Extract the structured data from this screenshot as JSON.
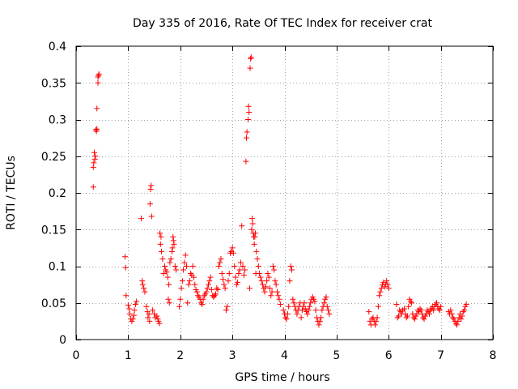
{
  "chart_data": {
    "type": "scatter",
    "title": "Day 335 of 2016, Rate Of TEC Index for receiver crat",
    "xlabel": "GPS time / hours",
    "ylabel": "ROTI / TECUs",
    "xlim": [
      0,
      8
    ],
    "ylim": [
      0,
      0.4
    ],
    "x_ticks": [
      0,
      1,
      2,
      3,
      4,
      5,
      6,
      7,
      8
    ],
    "x_tick_labels": [
      "0",
      "1",
      "2",
      "3",
      "4",
      "5",
      "6",
      "7",
      "8"
    ],
    "y_ticks": [
      0,
      0.05,
      0.1,
      0.15,
      0.2,
      0.25,
      0.3,
      0.35,
      0.4
    ],
    "y_tick_labels": [
      "0",
      "0.05",
      "0.1",
      "0.15",
      "0.2",
      "0.25",
      "0.3",
      "0.35",
      "0.4"
    ],
    "grid": true,
    "marker": "+",
    "marker_color": "#ff0000",
    "series": [
      {
        "name": "ROTI",
        "points": [
          [
            0.33,
            0.208
          ],
          [
            0.33,
            0.235
          ],
          [
            0.34,
            0.241
          ],
          [
            0.35,
            0.255
          ],
          [
            0.36,
            0.246
          ],
          [
            0.37,
            0.25
          ],
          [
            0.38,
            0.286
          ],
          [
            0.39,
            0.284
          ],
          [
            0.4,
            0.287
          ],
          [
            0.4,
            0.315
          ],
          [
            0.42,
            0.35
          ],
          [
            0.42,
            0.358
          ],
          [
            0.43,
            0.36
          ],
          [
            0.44,
            0.362
          ],
          [
            0.94,
            0.113
          ],
          [
            0.95,
            0.098
          ],
          [
            0.96,
            0.06
          ],
          [
            1.0,
            0.047
          ],
          [
            1.02,
            0.042
          ],
          [
            1.03,
            0.035
          ],
          [
            1.05,
            0.028
          ],
          [
            1.07,
            0.025
          ],
          [
            1.09,
            0.028
          ],
          [
            1.11,
            0.033
          ],
          [
            1.12,
            0.04
          ],
          [
            1.14,
            0.048
          ],
          [
            1.16,
            0.052
          ],
          [
            1.25,
            0.165
          ],
          [
            1.27,
            0.08
          ],
          [
            1.28,
            0.075
          ],
          [
            1.3,
            0.07
          ],
          [
            1.32,
            0.065
          ],
          [
            1.35,
            0.045
          ],
          [
            1.37,
            0.038
          ],
          [
            1.38,
            0.03
          ],
          [
            1.4,
            0.035
          ],
          [
            1.41,
            0.025
          ],
          [
            1.42,
            0.185
          ],
          [
            1.43,
            0.205
          ],
          [
            1.44,
            0.21
          ],
          [
            1.45,
            0.168
          ],
          [
            1.47,
            0.04
          ],
          [
            1.5,
            0.035
          ],
          [
            1.52,
            0.03
          ],
          [
            1.55,
            0.032
          ],
          [
            1.57,
            0.028
          ],
          [
            1.58,
            0.025
          ],
          [
            1.6,
            0.022
          ],
          [
            1.61,
            0.145
          ],
          [
            1.62,
            0.13
          ],
          [
            1.63,
            0.14
          ],
          [
            1.64,
            0.12
          ],
          [
            1.66,
            0.11
          ],
          [
            1.68,
            0.09
          ],
          [
            1.7,
            0.1
          ],
          [
            1.72,
            0.095
          ],
          [
            1.74,
            0.092
          ],
          [
            1.76,
            0.085
          ],
          [
            1.78,
            0.075
          ],
          [
            1.8,
            0.105
          ],
          [
            1.82,
            0.11
          ],
          [
            1.84,
            0.12
          ],
          [
            1.85,
            0.125
          ],
          [
            1.86,
            0.14
          ],
          [
            1.87,
            0.135
          ],
          [
            1.88,
            0.13
          ],
          [
            1.9,
            0.1
          ],
          [
            1.92,
            0.095
          ],
          [
            1.77,
            0.055
          ],
          [
            1.79,
            0.05
          ],
          [
            1.98,
            0.045
          ],
          [
            2.0,
            0.055
          ],
          [
            2.02,
            0.07
          ],
          [
            2.04,
            0.08
          ],
          [
            2.06,
            0.095
          ],
          [
            2.08,
            0.105
          ],
          [
            2.1,
            0.115
          ],
          [
            2.12,
            0.1
          ],
          [
            2.14,
            0.05
          ],
          [
            2.16,
            0.075
          ],
          [
            2.18,
            0.08
          ],
          [
            2.2,
            0.09
          ],
          [
            2.22,
            0.088
          ],
          [
            2.24,
            0.1
          ],
          [
            2.26,
            0.085
          ],
          [
            2.28,
            0.075
          ],
          [
            2.3,
            0.068
          ],
          [
            2.32,
            0.065
          ],
          [
            2.34,
            0.06
          ],
          [
            2.36,
            0.058
          ],
          [
            2.38,
            0.055
          ],
          [
            2.4,
            0.05
          ],
          [
            2.42,
            0.048
          ],
          [
            2.44,
            0.055
          ],
          [
            2.46,
            0.06
          ],
          [
            2.48,
            0.062
          ],
          [
            2.5,
            0.065
          ],
          [
            2.52,
            0.07
          ],
          [
            2.54,
            0.075
          ],
          [
            2.56,
            0.08
          ],
          [
            2.58,
            0.085
          ],
          [
            2.6,
            0.068
          ],
          [
            2.62,
            0.06
          ],
          [
            2.64,
            0.058
          ],
          [
            2.66,
            0.06
          ],
          [
            2.68,
            0.062
          ],
          [
            2.7,
            0.07
          ],
          [
            2.72,
            0.068
          ],
          [
            2.74,
            0.1
          ],
          [
            2.76,
            0.105
          ],
          [
            2.78,
            0.11
          ],
          [
            2.8,
            0.09
          ],
          [
            2.82,
            0.082
          ],
          [
            2.84,
            0.075
          ],
          [
            2.86,
            0.07
          ],
          [
            2.88,
            0.04
          ],
          [
            2.9,
            0.045
          ],
          [
            2.92,
            0.08
          ],
          [
            2.94,
            0.09
          ],
          [
            2.96,
            0.118
          ],
          [
            2.98,
            0.12
          ],
          [
            3.0,
            0.125
          ],
          [
            3.02,
            0.118
          ],
          [
            3.04,
            0.1
          ],
          [
            3.06,
            0.085
          ],
          [
            3.08,
            0.075
          ],
          [
            3.1,
            0.078
          ],
          [
            3.12,
            0.09
          ],
          [
            3.14,
            0.095
          ],
          [
            3.16,
            0.105
          ],
          [
            3.18,
            0.155
          ],
          [
            3.2,
            0.1
          ],
          [
            3.22,
            0.088
          ],
          [
            3.24,
            0.095
          ],
          [
            3.26,
            0.243
          ],
          [
            3.27,
            0.275
          ],
          [
            3.28,
            0.283
          ],
          [
            3.3,
            0.3
          ],
          [
            3.31,
            0.318
          ],
          [
            3.32,
            0.31
          ],
          [
            3.33,
            0.07
          ],
          [
            3.34,
            0.37
          ],
          [
            3.35,
            0.383
          ],
          [
            3.36,
            0.385
          ],
          [
            3.37,
            0.15
          ],
          [
            3.38,
            0.165
          ],
          [
            3.39,
            0.158
          ],
          [
            3.4,
            0.145
          ],
          [
            3.41,
            0.14
          ],
          [
            3.42,
            0.13
          ],
          [
            3.43,
            0.14
          ],
          [
            3.44,
            0.145
          ],
          [
            3.45,
            0.09
          ],
          [
            3.46,
            0.12
          ],
          [
            3.48,
            0.11
          ],
          [
            3.5,
            0.1
          ],
          [
            3.52,
            0.09
          ],
          [
            3.54,
            0.085
          ],
          [
            3.56,
            0.08
          ],
          [
            3.58,
            0.075
          ],
          [
            3.6,
            0.07
          ],
          [
            3.62,
            0.065
          ],
          [
            3.64,
            0.072
          ],
          [
            3.66,
            0.08
          ],
          [
            3.68,
            0.09
          ],
          [
            3.7,
            0.085
          ],
          [
            3.72,
            0.07
          ],
          [
            3.74,
            0.06
          ],
          [
            3.76,
            0.065
          ],
          [
            3.78,
            0.1
          ],
          [
            3.8,
            0.095
          ],
          [
            3.82,
            0.08
          ],
          [
            3.84,
            0.075
          ],
          [
            3.86,
            0.065
          ],
          [
            3.88,
            0.06
          ],
          [
            3.9,
            0.055
          ],
          [
            3.92,
            0.048
          ],
          [
            3.98,
            0.04
          ],
          [
            4.0,
            0.035
          ],
          [
            4.02,
            0.03
          ],
          [
            4.04,
            0.028
          ],
          [
            4.06,
            0.035
          ],
          [
            4.08,
            0.045
          ],
          [
            4.1,
            0.08
          ],
          [
            4.12,
            0.1
          ],
          [
            4.14,
            0.095
          ],
          [
            4.16,
            0.055
          ],
          [
            4.18,
            0.05
          ],
          [
            4.2,
            0.045
          ],
          [
            4.22,
            0.04
          ],
          [
            4.24,
            0.035
          ],
          [
            4.26,
            0.04
          ],
          [
            4.28,
            0.045
          ],
          [
            4.3,
            0.05
          ],
          [
            4.32,
            0.03
          ],
          [
            4.34,
            0.04
          ],
          [
            4.36,
            0.045
          ],
          [
            4.38,
            0.05
          ],
          [
            4.4,
            0.042
          ],
          [
            4.42,
            0.038
          ],
          [
            4.44,
            0.035
          ],
          [
            4.46,
            0.04
          ],
          [
            4.48,
            0.045
          ],
          [
            4.5,
            0.05
          ],
          [
            4.52,
            0.055
          ],
          [
            4.54,
            0.058
          ],
          [
            4.56,
            0.055
          ],
          [
            4.58,
            0.052
          ],
          [
            4.6,
            0.04
          ],
          [
            4.62,
            0.03
          ],
          [
            4.64,
            0.025
          ],
          [
            4.66,
            0.02
          ],
          [
            4.68,
            0.025
          ],
          [
            4.7,
            0.03
          ],
          [
            4.72,
            0.04
          ],
          [
            4.74,
            0.045
          ],
          [
            4.76,
            0.05
          ],
          [
            4.78,
            0.055
          ],
          [
            4.8,
            0.058
          ],
          [
            4.82,
            0.045
          ],
          [
            4.84,
            0.04
          ],
          [
            4.86,
            0.035
          ],
          [
            5.62,
            0.038
          ],
          [
            5.64,
            0.025
          ],
          [
            5.66,
            0.02
          ],
          [
            5.68,
            0.028
          ],
          [
            5.7,
            0.03
          ],
          [
            5.72,
            0.025
          ],
          [
            5.74,
            0.02
          ],
          [
            5.76,
            0.025
          ],
          [
            5.78,
            0.03
          ],
          [
            5.8,
            0.045
          ],
          [
            5.82,
            0.06
          ],
          [
            5.84,
            0.065
          ],
          [
            5.86,
            0.07
          ],
          [
            5.88,
            0.075
          ],
          [
            5.9,
            0.078
          ],
          [
            5.92,
            0.072
          ],
          [
            5.94,
            0.075
          ],
          [
            5.96,
            0.08
          ],
          [
            5.98,
            0.075
          ],
          [
            6.0,
            0.07
          ],
          [
            6.15,
            0.048
          ],
          [
            6.17,
            0.03
          ],
          [
            6.19,
            0.032
          ],
          [
            6.21,
            0.04
          ],
          [
            6.23,
            0.038
          ],
          [
            6.25,
            0.035
          ],
          [
            6.27,
            0.04
          ],
          [
            6.3,
            0.042
          ],
          [
            6.32,
            0.035
          ],
          [
            6.34,
            0.03
          ],
          [
            6.36,
            0.032
          ],
          [
            6.38,
            0.045
          ],
          [
            6.4,
            0.055
          ],
          [
            6.42,
            0.052
          ],
          [
            6.44,
            0.05
          ],
          [
            6.46,
            0.035
          ],
          [
            6.48,
            0.03
          ],
          [
            6.5,
            0.028
          ],
          [
            6.52,
            0.032
          ],
          [
            6.54,
            0.035
          ],
          [
            6.56,
            0.04
          ],
          [
            6.58,
            0.038
          ],
          [
            6.6,
            0.042
          ],
          [
            6.62,
            0.04
          ],
          [
            6.64,
            0.035
          ],
          [
            6.66,
            0.03
          ],
          [
            6.68,
            0.028
          ],
          [
            6.7,
            0.032
          ],
          [
            6.72,
            0.035
          ],
          [
            6.74,
            0.04
          ],
          [
            6.76,
            0.038
          ],
          [
            6.78,
            0.035
          ],
          [
            6.8,
            0.04
          ],
          [
            6.82,
            0.042
          ],
          [
            6.84,
            0.045
          ],
          [
            6.86,
            0.04
          ],
          [
            6.88,
            0.045
          ],
          [
            6.9,
            0.048
          ],
          [
            6.92,
            0.05
          ],
          [
            6.94,
            0.045
          ],
          [
            6.96,
            0.042
          ],
          [
            6.98,
            0.04
          ],
          [
            7.0,
            0.045
          ],
          [
            7.15,
            0.038
          ],
          [
            7.17,
            0.035
          ],
          [
            7.19,
            0.04
          ],
          [
            7.21,
            0.035
          ],
          [
            7.23,
            0.03
          ],
          [
            7.25,
            0.028
          ],
          [
            7.27,
            0.025
          ],
          [
            7.29,
            0.022
          ],
          [
            7.31,
            0.02
          ],
          [
            7.33,
            0.025
          ],
          [
            7.35,
            0.03
          ],
          [
            7.37,
            0.035
          ],
          [
            7.39,
            0.028
          ],
          [
            7.41,
            0.032
          ],
          [
            7.43,
            0.038
          ],
          [
            7.45,
            0.04
          ],
          [
            7.47,
            0.045
          ],
          [
            7.49,
            0.048
          ]
        ]
      }
    ]
  }
}
